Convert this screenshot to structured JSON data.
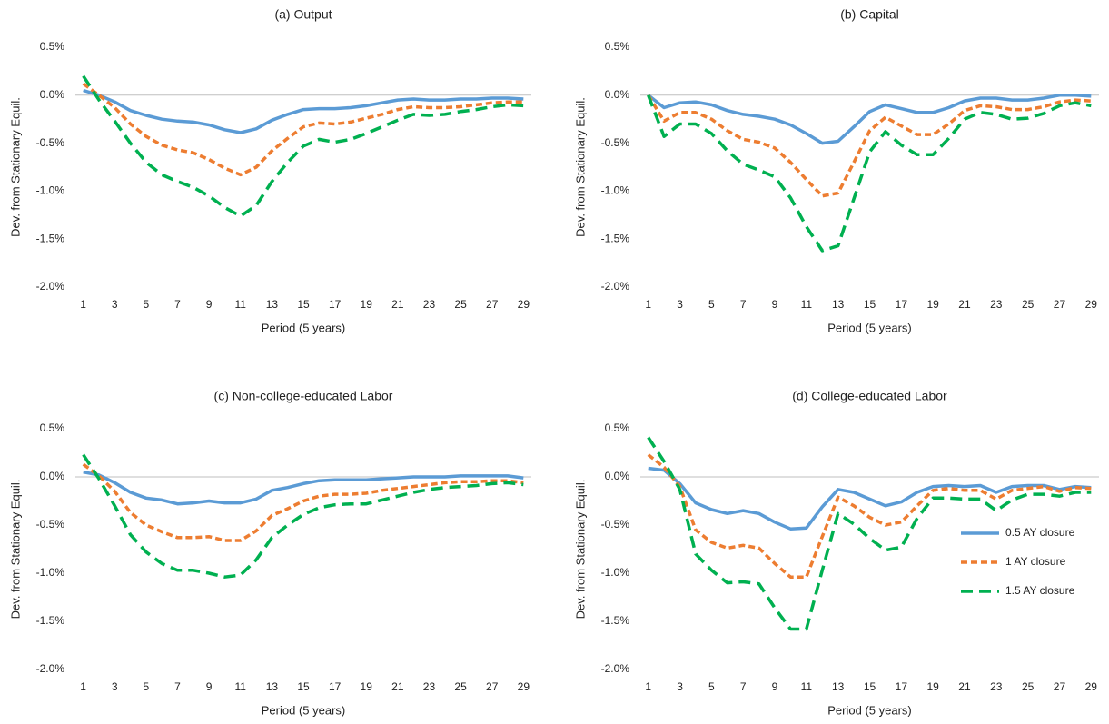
{
  "chart_data": [
    {
      "type": "line",
      "title": "(a) Output",
      "xlabel": "Period (5 years)",
      "ylabel": "Dev. from Stationary Equil.",
      "x": [
        1,
        2,
        3,
        4,
        5,
        6,
        7,
        8,
        9,
        10,
        11,
        12,
        13,
        14,
        15,
        16,
        17,
        18,
        19,
        20,
        21,
        22,
        23,
        24,
        25,
        26,
        27,
        28,
        29
      ],
      "xlim": [
        0.5,
        29.5
      ],
      "xticks": [
        1,
        3,
        5,
        7,
        9,
        11,
        13,
        15,
        17,
        19,
        21,
        23,
        25,
        27,
        29
      ],
      "ylim": [
        -2.0,
        0.5
      ],
      "yticks": [
        {
          "value": -2.0,
          "label": "-2.0%"
        },
        {
          "value": -1.5,
          "label": "-1.5%"
        },
        {
          "value": -1.0,
          "label": "-1.0%"
        },
        {
          "value": -0.5,
          "label": "-0.5%"
        },
        {
          "value": 0.0,
          "label": "0.0%"
        },
        {
          "value": 0.5,
          "label": "0.5%"
        }
      ],
      "series": [
        {
          "color": "#5b9bd5",
          "style": "solid",
          "values": [
            0.05,
            0.0,
            -0.07,
            -0.16,
            -0.21,
            -0.25,
            -0.27,
            -0.28,
            -0.31,
            -0.36,
            -0.39,
            -0.35,
            -0.26,
            -0.2,
            -0.15,
            -0.14,
            -0.14,
            -0.13,
            -0.11,
            -0.08,
            -0.05,
            -0.04,
            -0.05,
            -0.05,
            -0.04,
            -0.04,
            -0.03,
            -0.03,
            -0.04
          ]
        },
        {
          "color": "#ed7d31",
          "style": "dashed",
          "values": [
            0.12,
            0.0,
            -0.13,
            -0.3,
            -0.43,
            -0.52,
            -0.57,
            -0.6,
            -0.67,
            -0.76,
            -0.83,
            -0.75,
            -0.58,
            -0.45,
            -0.33,
            -0.29,
            -0.3,
            -0.28,
            -0.24,
            -0.2,
            -0.15,
            -0.12,
            -0.13,
            -0.13,
            -0.12,
            -0.1,
            -0.08,
            -0.07,
            -0.07
          ]
        },
        {
          "color": "#00b050",
          "style": "long-dashed",
          "values": [
            0.2,
            -0.05,
            -0.27,
            -0.5,
            -0.7,
            -0.83,
            -0.9,
            -0.96,
            -1.05,
            -1.17,
            -1.26,
            -1.15,
            -0.9,
            -0.7,
            -0.53,
            -0.46,
            -0.49,
            -0.46,
            -0.4,
            -0.33,
            -0.26,
            -0.2,
            -0.21,
            -0.2,
            -0.17,
            -0.15,
            -0.12,
            -0.1,
            -0.11
          ]
        }
      ]
    },
    {
      "type": "line",
      "title": "(b) Capital",
      "xlabel": "Period (5 years)",
      "ylabel": "Dev. from Stationary Equil.",
      "x": [
        1,
        2,
        3,
        4,
        5,
        6,
        7,
        8,
        9,
        10,
        11,
        12,
        13,
        14,
        15,
        16,
        17,
        18,
        19,
        20,
        21,
        22,
        23,
        24,
        25,
        26,
        27,
        28,
        29
      ],
      "xlim": [
        0.5,
        29.5
      ],
      "xticks": [
        1,
        3,
        5,
        7,
        9,
        11,
        13,
        15,
        17,
        19,
        21,
        23,
        25,
        27,
        29
      ],
      "ylim": [
        -2.0,
        0.5
      ],
      "yticks": [
        {
          "value": -2.0,
          "label": "-2.0%"
        },
        {
          "value": -1.5,
          "label": "-1.5%"
        },
        {
          "value": -1.0,
          "label": "-1.0%"
        },
        {
          "value": -0.5,
          "label": "-0.5%"
        },
        {
          "value": 0.0,
          "label": "0.0%"
        },
        {
          "value": 0.5,
          "label": "0.5%"
        }
      ],
      "series": [
        {
          "color": "#5b9bd5",
          "style": "solid",
          "values": [
            0.0,
            -0.13,
            -0.08,
            -0.07,
            -0.1,
            -0.16,
            -0.2,
            -0.22,
            -0.25,
            -0.31,
            -0.4,
            -0.5,
            -0.48,
            -0.33,
            -0.17,
            -0.1,
            -0.14,
            -0.18,
            -0.18,
            -0.13,
            -0.06,
            -0.03,
            -0.03,
            -0.05,
            -0.05,
            -0.03,
            0.0,
            0.0,
            -0.01
          ]
        },
        {
          "color": "#ed7d31",
          "style": "dashed",
          "values": [
            0.0,
            -0.27,
            -0.18,
            -0.18,
            -0.25,
            -0.37,
            -0.46,
            -0.49,
            -0.55,
            -0.7,
            -0.88,
            -1.05,
            -1.02,
            -0.7,
            -0.37,
            -0.23,
            -0.32,
            -0.41,
            -0.41,
            -0.3,
            -0.16,
            -0.11,
            -0.12,
            -0.15,
            -0.15,
            -0.12,
            -0.07,
            -0.05,
            -0.06
          ]
        },
        {
          "color": "#00b050",
          "style": "long-dashed",
          "values": [
            0.0,
            -0.43,
            -0.3,
            -0.3,
            -0.4,
            -0.58,
            -0.72,
            -0.78,
            -0.85,
            -1.07,
            -1.37,
            -1.62,
            -1.57,
            -1.08,
            -0.59,
            -0.38,
            -0.52,
            -0.62,
            -0.62,
            -0.45,
            -0.25,
            -0.18,
            -0.2,
            -0.25,
            -0.24,
            -0.19,
            -0.11,
            -0.08,
            -0.11
          ]
        }
      ]
    },
    {
      "type": "line",
      "title": "(c) Non-college-educated Labor",
      "xlabel": "Period (5 years)",
      "ylabel": "Dev. from Stationary Equil.",
      "x": [
        1,
        2,
        3,
        4,
        5,
        6,
        7,
        8,
        9,
        10,
        11,
        12,
        13,
        14,
        15,
        16,
        17,
        18,
        19,
        20,
        21,
        22,
        23,
        24,
        25,
        26,
        27,
        28,
        29
      ],
      "xlim": [
        0.5,
        29.5
      ],
      "xticks": [
        1,
        3,
        5,
        7,
        9,
        11,
        13,
        15,
        17,
        19,
        21,
        23,
        25,
        27,
        29
      ],
      "ylim": [
        -2.0,
        0.5
      ],
      "yticks": [
        {
          "value": -2.0,
          "label": "-2.0%"
        },
        {
          "value": -1.5,
          "label": "-1.5%"
        },
        {
          "value": -1.0,
          "label": "-1.0%"
        },
        {
          "value": -0.5,
          "label": "-0.5%"
        },
        {
          "value": 0.0,
          "label": "0.0%"
        },
        {
          "value": 0.5,
          "label": "0.5%"
        }
      ],
      "series": [
        {
          "color": "#5b9bd5",
          "style": "solid",
          "values": [
            0.05,
            0.02,
            -0.06,
            -0.16,
            -0.22,
            -0.24,
            -0.28,
            -0.27,
            -0.25,
            -0.27,
            -0.27,
            -0.23,
            -0.14,
            -0.11,
            -0.07,
            -0.04,
            -0.03,
            -0.03,
            -0.03,
            -0.02,
            -0.01,
            0.0,
            0.0,
            0.0,
            0.01,
            0.01,
            0.01,
            0.01,
            -0.01
          ]
        },
        {
          "color": "#ed7d31",
          "style": "dashed",
          "values": [
            0.13,
            0.01,
            -0.15,
            -0.37,
            -0.5,
            -0.57,
            -0.63,
            -0.63,
            -0.62,
            -0.66,
            -0.66,
            -0.56,
            -0.4,
            -0.33,
            -0.25,
            -0.2,
            -0.18,
            -0.18,
            -0.17,
            -0.14,
            -0.12,
            -0.1,
            -0.08,
            -0.06,
            -0.05,
            -0.05,
            -0.04,
            -0.04,
            -0.06
          ]
        },
        {
          "color": "#00b050",
          "style": "long-dashed",
          "values": [
            0.23,
            -0.02,
            -0.3,
            -0.6,
            -0.78,
            -0.9,
            -0.97,
            -0.97,
            -1.0,
            -1.04,
            -1.02,
            -0.86,
            -0.63,
            -0.5,
            -0.39,
            -0.32,
            -0.29,
            -0.28,
            -0.28,
            -0.24,
            -0.2,
            -0.16,
            -0.13,
            -0.11,
            -0.1,
            -0.09,
            -0.07,
            -0.06,
            -0.08
          ]
        }
      ]
    },
    {
      "type": "line",
      "title": "(d) College-educated Labor",
      "xlabel": "Period (5 years)",
      "ylabel": "Dev. from Stationary Equil.",
      "x": [
        1,
        2,
        3,
        4,
        5,
        6,
        7,
        8,
        9,
        10,
        11,
        12,
        13,
        14,
        15,
        16,
        17,
        18,
        19,
        20,
        21,
        22,
        23,
        24,
        25,
        26,
        27,
        28,
        29
      ],
      "xlim": [
        0.5,
        29.5
      ],
      "xticks": [
        1,
        3,
        5,
        7,
        9,
        11,
        13,
        15,
        17,
        19,
        21,
        23,
        25,
        27,
        29
      ],
      "ylim": [
        -2.0,
        0.5
      ],
      "yticks": [
        {
          "value": -2.0,
          "label": "-2.0%"
        },
        {
          "value": -1.5,
          "label": "-1.5%"
        },
        {
          "value": -1.0,
          "label": "-1.0%"
        },
        {
          "value": -0.5,
          "label": "-0.5%"
        },
        {
          "value": 0.0,
          "label": "0.0%"
        },
        {
          "value": 0.5,
          "label": "0.5%"
        }
      ],
      "legend": "lower right",
      "series": [
        {
          "name": "0.5 AY closure",
          "color": "#5b9bd5",
          "style": "solid",
          "values": [
            0.09,
            0.07,
            -0.07,
            -0.27,
            -0.34,
            -0.38,
            -0.35,
            -0.38,
            -0.47,
            -0.54,
            -0.53,
            -0.31,
            -0.13,
            -0.16,
            -0.23,
            -0.3,
            -0.26,
            -0.16,
            -0.1,
            -0.09,
            -0.1,
            -0.09,
            -0.16,
            -0.1,
            -0.09,
            -0.09,
            -0.13,
            -0.1,
            -0.11
          ]
        },
        {
          "name": "1 AY closure",
          "color": "#ed7d31",
          "style": "dashed",
          "values": [
            0.23,
            0.1,
            -0.1,
            -0.55,
            -0.68,
            -0.74,
            -0.71,
            -0.74,
            -0.9,
            -1.04,
            -1.04,
            -0.62,
            -0.21,
            -0.3,
            -0.42,
            -0.5,
            -0.47,
            -0.3,
            -0.14,
            -0.12,
            -0.14,
            -0.14,
            -0.23,
            -0.14,
            -0.12,
            -0.1,
            -0.15,
            -0.11,
            -0.12
          ]
        },
        {
          "name": "1.5 AY closure",
          "color": "#00b050",
          "style": "long-dashed",
          "values": [
            0.41,
            0.16,
            -0.13,
            -0.8,
            -0.97,
            -1.1,
            -1.09,
            -1.11,
            -1.36,
            -1.58,
            -1.58,
            -0.97,
            -0.38,
            -0.49,
            -0.64,
            -0.76,
            -0.73,
            -0.43,
            -0.22,
            -0.22,
            -0.23,
            -0.23,
            -0.35,
            -0.24,
            -0.18,
            -0.18,
            -0.2,
            -0.16,
            -0.16
          ]
        }
      ]
    }
  ]
}
